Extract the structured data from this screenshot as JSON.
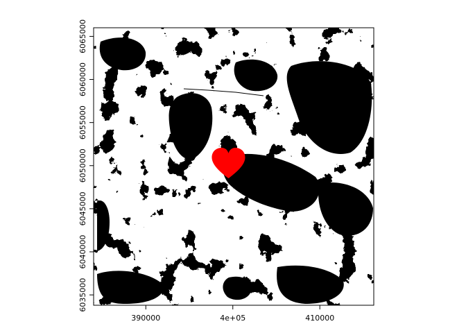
{
  "map": {
    "type": "raster",
    "x_axis": {
      "range": [
        384000,
        416200
      ],
      "ticks": [
        {
          "value": 390000,
          "label": "390000"
        },
        {
          "value": 400000,
          "label": "4e+05"
        },
        {
          "value": 410000,
          "label": "410000"
        }
      ]
    },
    "y_axis": {
      "range": [
        6033800,
        6066000
      ],
      "ticks": [
        {
          "value": 6035000,
          "label": "6035000"
        },
        {
          "value": 6040000,
          "label": "6040000"
        },
        {
          "value": 6045000,
          "label": "6045000"
        },
        {
          "value": 6050000,
          "label": "6050000"
        },
        {
          "value": 6055000,
          "label": "6055000"
        },
        {
          "value": 6060000,
          "label": "6060000"
        },
        {
          "value": 6065000,
          "label": "6065000"
        }
      ]
    },
    "raster_colors": {
      "low": "#ffffff",
      "high": "#000000"
    },
    "highlight": {
      "shape": "heart-icon",
      "color": "#ff0000",
      "center": {
        "x": 399500,
        "y": 6050300
      }
    }
  }
}
